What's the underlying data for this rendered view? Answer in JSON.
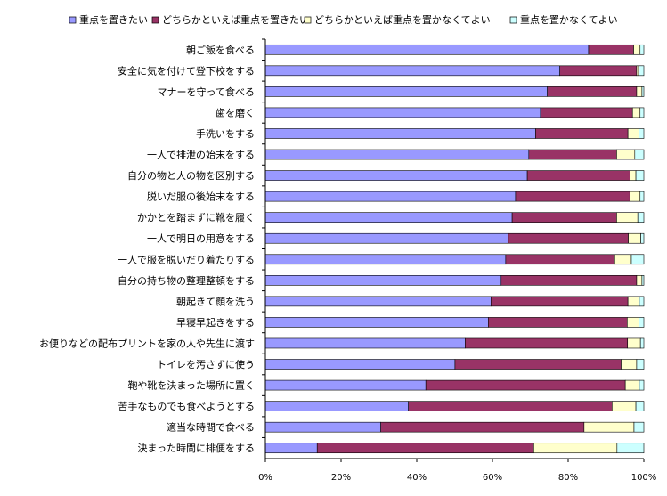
{
  "chart_data": {
    "type": "bar",
    "orientation": "horizontal",
    "stacked": true,
    "stack_mode": "percent",
    "xlim": [
      0,
      100
    ],
    "x_ticks": [
      "0%",
      "20%",
      "40%",
      "60%",
      "80%",
      "100%"
    ],
    "grid": false,
    "legend_position": "top",
    "categories": [
      "朝ご飯を食べる",
      "安全に気を付けて登下校をする",
      "マナーを守って食べる",
      "歯を磨く",
      "手洗いをする",
      "一人で排泄の始末をする",
      "自分の物と人の物を区別する",
      "脱いだ服の後始末をする",
      "かかとを踏まずに靴を履く",
      "一人で明日の用意をする",
      "一人で服を脱いだり着たりする",
      "自分の持ち物の整理整頓をする",
      "朝起きて顔を洗う",
      "早寝早起きをする",
      "お便りなどの配布プリントを家の人や先生に渡す",
      "トイレを汚さずに使う",
      "鞄や靴を決まった場所に置く",
      "苦手なものでも食べようとする",
      "適当な時間で食べる",
      "決まった時間に排便をする"
    ],
    "series": [
      {
        "name": "重点を置きたい",
        "color": "#9999ff",
        "values": [
          85.4,
          77.8,
          74.5,
          72.7,
          71.4,
          69.6,
          69.2,
          66.1,
          65.2,
          64.2,
          63.5,
          62.3,
          59.6,
          58.9,
          52.8,
          50.1,
          42.4,
          37.8,
          30.5,
          13.7
        ]
      },
      {
        "name": "どちらかといえば重点を置きたい",
        "color": "#993366",
        "values": [
          11.9,
          20.3,
          23.6,
          24.3,
          24.4,
          23.2,
          27.2,
          30.2,
          27.6,
          31.7,
          28.8,
          35.8,
          36.2,
          36.7,
          42.9,
          43.9,
          52.7,
          53.8,
          53.7,
          57.2
        ]
      },
      {
        "name": "どちらかといえば重点を置かなくてよい",
        "color": "#ffffcc",
        "values": [
          1.7,
          0.5,
          1.4,
          2.0,
          2.9,
          4.8,
          1.5,
          2.7,
          5.6,
          3.3,
          4.4,
          1.4,
          3.0,
          3.1,
          3.4,
          4.1,
          3.7,
          6.3,
          13.2,
          22.0
        ]
      },
      {
        "name": "重点を置かなくてよい",
        "color": "#ccffff",
        "values": [
          1.0,
          1.4,
          0.5,
          1.0,
          1.3,
          2.4,
          2.1,
          1.0,
          1.6,
          0.8,
          3.3,
          0.5,
          1.2,
          1.3,
          0.9,
          1.9,
          1.2,
          2.1,
          2.6,
          7.1
        ]
      }
    ]
  }
}
